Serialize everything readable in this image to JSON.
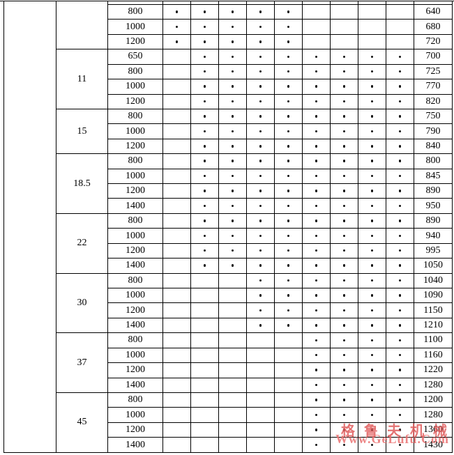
{
  "table": {
    "groups": [
      {
        "power": "",
        "rows": [
          {
            "speed": "800",
            "dots": [
              1,
              1,
              1,
              1,
              1,
              0,
              0,
              0,
              0
            ],
            "value": "640"
          },
          {
            "speed": "1000",
            "dots": [
              1,
              1,
              1,
              1,
              1,
              0,
              0,
              0,
              0
            ],
            "value": "680"
          },
          {
            "speed": "1200",
            "dots": [
              1,
              1,
              1,
              1,
              1,
              0,
              0,
              0,
              0
            ],
            "value": "720"
          }
        ]
      },
      {
        "power": "11",
        "rows": [
          {
            "speed": "650",
            "dots": [
              0,
              1,
              1,
              1,
              1,
              1,
              1,
              1,
              1
            ],
            "value": "700"
          },
          {
            "speed": "800",
            "dots": [
              0,
              1,
              1,
              1,
              1,
              1,
              1,
              1,
              1
            ],
            "value": "725"
          },
          {
            "speed": "1000",
            "dots": [
              0,
              1,
              1,
              1,
              1,
              1,
              1,
              1,
              1
            ],
            "value": "770"
          },
          {
            "speed": "1200",
            "dots": [
              0,
              1,
              1,
              1,
              1,
              1,
              1,
              1,
              1
            ],
            "value": "820"
          }
        ]
      },
      {
        "power": "15",
        "rows": [
          {
            "speed": "800",
            "dots": [
              0,
              1,
              1,
              1,
              1,
              1,
              1,
              1,
              1
            ],
            "value": "750"
          },
          {
            "speed": "1000",
            "dots": [
              0,
              1,
              1,
              1,
              1,
              1,
              1,
              1,
              1
            ],
            "value": "790"
          },
          {
            "speed": "1200",
            "dots": [
              0,
              1,
              1,
              1,
              1,
              1,
              1,
              1,
              1
            ],
            "value": "840"
          }
        ]
      },
      {
        "power": "18.5",
        "rows": [
          {
            "speed": "800",
            "dots": [
              0,
              1,
              1,
              1,
              1,
              1,
              1,
              1,
              1
            ],
            "value": "800"
          },
          {
            "speed": "1000",
            "dots": [
              0,
              1,
              1,
              1,
              1,
              1,
              1,
              1,
              1
            ],
            "value": "845"
          },
          {
            "speed": "1200",
            "dots": [
              0,
              1,
              1,
              1,
              1,
              1,
              1,
              1,
              1
            ],
            "value": "890"
          },
          {
            "speed": "1400",
            "dots": [
              0,
              1,
              1,
              1,
              1,
              1,
              1,
              1,
              1
            ],
            "value": "950"
          }
        ]
      },
      {
        "power": "22",
        "rows": [
          {
            "speed": "800",
            "dots": [
              0,
              1,
              1,
              1,
              1,
              1,
              1,
              1,
              1
            ],
            "value": "890"
          },
          {
            "speed": "1000",
            "dots": [
              0,
              1,
              1,
              1,
              1,
              1,
              1,
              1,
              1
            ],
            "value": "940"
          },
          {
            "speed": "1200",
            "dots": [
              0,
              1,
              1,
              1,
              1,
              1,
              1,
              1,
              1
            ],
            "value": "995"
          },
          {
            "speed": "1400",
            "dots": [
              0,
              1,
              1,
              1,
              1,
              1,
              1,
              1,
              1
            ],
            "value": "1050"
          }
        ]
      },
      {
        "power": "30",
        "rows": [
          {
            "speed": "800",
            "dots": [
              0,
              0,
              0,
              1,
              1,
              1,
              1,
              1,
              1
            ],
            "value": "1040"
          },
          {
            "speed": "1000",
            "dots": [
              0,
              0,
              0,
              1,
              1,
              1,
              1,
              1,
              1
            ],
            "value": "1090"
          },
          {
            "speed": "1200",
            "dots": [
              0,
              0,
              0,
              1,
              1,
              1,
              1,
              1,
              1
            ],
            "value": "1150"
          },
          {
            "speed": "1400",
            "dots": [
              0,
              0,
              0,
              1,
              1,
              1,
              1,
              1,
              1
            ],
            "value": "1210"
          }
        ]
      },
      {
        "power": "37",
        "rows": [
          {
            "speed": "800",
            "dots": [
              0,
              0,
              0,
              0,
              0,
              1,
              1,
              1,
              1
            ],
            "value": "1100"
          },
          {
            "speed": "1000",
            "dots": [
              0,
              0,
              0,
              0,
              0,
              1,
              1,
              1,
              1
            ],
            "value": "1160"
          },
          {
            "speed": "1200",
            "dots": [
              0,
              0,
              0,
              0,
              0,
              1,
              1,
              1,
              1
            ],
            "value": "1220"
          },
          {
            "speed": "1400",
            "dots": [
              0,
              0,
              0,
              0,
              0,
              1,
              1,
              1,
              1
            ],
            "value": "1280"
          }
        ]
      },
      {
        "power": "45",
        "rows": [
          {
            "speed": "800",
            "dots": [
              0,
              0,
              0,
              0,
              0,
              1,
              1,
              1,
              1
            ],
            "value": "1200"
          },
          {
            "speed": "1000",
            "dots": [
              0,
              0,
              0,
              0,
              0,
              1,
              1,
              1,
              1
            ],
            "value": "1280"
          },
          {
            "speed": "1200",
            "dots": [
              0,
              0,
              0,
              0,
              0,
              1,
              1,
              1,
              1
            ],
            "value": "1360"
          },
          {
            "speed": "1400",
            "dots": [
              0,
              0,
              0,
              0,
              0,
              1,
              1,
              1,
              1
            ],
            "value": "1430"
          }
        ]
      }
    ]
  },
  "watermark": {
    "line1": "格鲁夫机械",
    "line2": "Www.GeLufu.Com",
    "color": "#df5c5c"
  }
}
